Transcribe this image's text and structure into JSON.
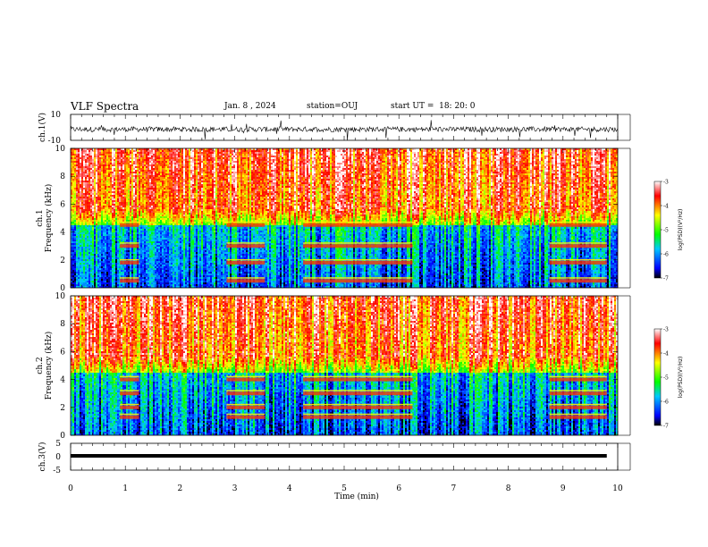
{
  "header": {
    "title": "VLF Spectra",
    "date": "Jan. 8 , 2024",
    "station": "station=OUJ",
    "start": "start UT =  18: 20: 0"
  },
  "chart_data": [
    {
      "type": "line",
      "panel": "ch1-waveform",
      "ylabel": "ch.1(V)",
      "ylim": [
        -10,
        10
      ],
      "yticks": [
        "10",
        "-10"
      ],
      "xlim": [
        0,
        10
      ]
    },
    {
      "type": "heatmap",
      "panel": "ch1-spectrogram",
      "ylabel": "ch.1\nFrequency (kHz)",
      "ylim": [
        0,
        10
      ],
      "yticks": [
        "0",
        "2",
        "4",
        "6",
        "8",
        "10"
      ],
      "xlim": [
        0,
        10
      ],
      "colorbar": {
        "label": "log(PSD)(V²/Hz)",
        "range": [
          -7,
          -3
        ],
        "ticks": [
          "-3",
          "-4",
          "-5",
          "-6",
          "-7"
        ]
      },
      "emission_bands_kHz": [
        4.5,
        3.0,
        1.8,
        0.5
      ],
      "emission_intervals_min": [
        [
          0.9,
          1.25
        ],
        [
          2.85,
          3.55
        ],
        [
          4.25,
          6.25
        ],
        [
          8.75,
          9.8
        ]
      ]
    },
    {
      "type": "heatmap",
      "panel": "ch2-spectrogram",
      "ylabel": "ch.2\nFrequency (kHz)",
      "ylim": [
        0,
        10
      ],
      "yticks": [
        "0",
        "2",
        "4",
        "6",
        "8",
        "10"
      ],
      "xlim": [
        0,
        10
      ],
      "colorbar": {
        "label": "log(PSD)(V²/Hz)",
        "range": [
          -7,
          -3
        ],
        "ticks": [
          "-3",
          "-4",
          "-5",
          "-6",
          "-7"
        ]
      },
      "emission_bands_kHz": [
        4.0,
        3.0,
        2.0,
        1.3
      ],
      "emission_intervals_min": [
        [
          0.9,
          1.25
        ],
        [
          2.85,
          3.55
        ],
        [
          4.25,
          6.25
        ],
        [
          8.75,
          9.8
        ]
      ]
    },
    {
      "type": "line",
      "panel": "ch3-waveform",
      "ylabel": "ch.3(V)",
      "ylim": [
        -5,
        5
      ],
      "yticks": [
        "5",
        "0",
        "-5"
      ],
      "x": [
        0,
        9.8
      ],
      "y": [
        0,
        0
      ],
      "xlim": [
        0,
        10
      ],
      "xticks": [
        "0",
        "1",
        "2",
        "3",
        "4",
        "5",
        "6",
        "7",
        "8",
        "9",
        "10"
      ],
      "xlabel": "Time (min)"
    }
  ]
}
